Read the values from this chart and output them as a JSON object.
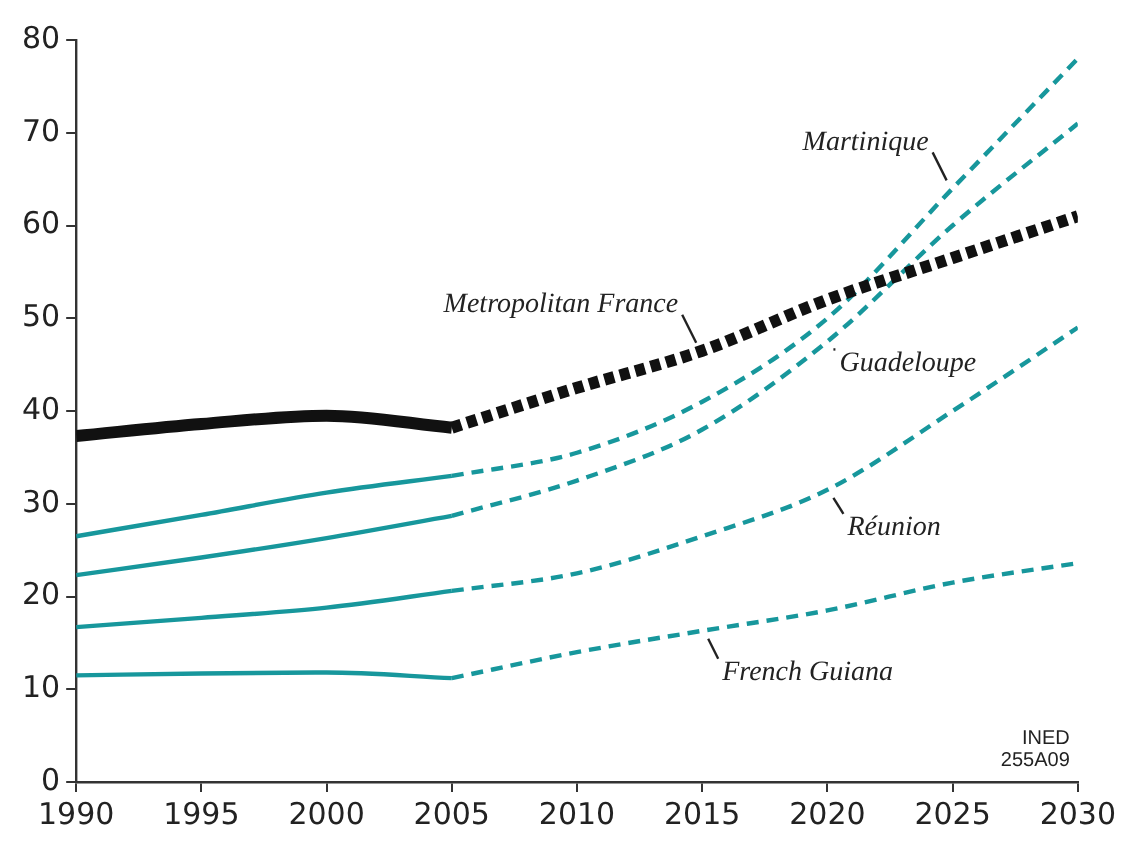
{
  "chart_data": {
    "type": "line",
    "xlim": [
      1990,
      2030
    ],
    "xticks": [
      1990,
      1995,
      2000,
      2005,
      2010,
      2015,
      2020,
      2025,
      2030
    ],
    "ylim": [
      0,
      80
    ],
    "yticks": [
      0,
      10,
      20,
      30,
      40,
      50,
      60,
      70,
      80
    ],
    "grid": false,
    "legend": false,
    "marker": "none",
    "annotations": [
      "INED\n255A09"
    ],
    "series": [
      {
        "color": "#111111",
        "line_style": "solid",
        "x": [
          1990,
          1995,
          2000,
          2005
        ],
        "values": [
          37.3,
          38.6,
          39.5,
          38.2
        ]
      },
      {
        "name": "Metropolitan France",
        "color": "#111111",
        "line_style": "dotted",
        "x": [
          2005,
          2010,
          2015,
          2020,
          2025,
          2030
        ],
        "values": [
          38.2,
          42.5,
          46.5,
          52,
          56.5,
          61
        ]
      },
      {
        "color": "#17979c",
        "line_style": "solid",
        "x": [
          1990,
          1995,
          2000,
          2005
        ],
        "values": [
          26.5,
          28.8,
          31.2,
          33
        ]
      },
      {
        "name": "Martinique",
        "color": "#17979c",
        "line_style": "dashed",
        "x": [
          2005,
          2010,
          2015,
          2020,
          2025,
          2030
        ],
        "values": [
          33,
          35.5,
          41,
          50,
          64,
          78
        ]
      },
      {
        "color": "#17979c",
        "line_style": "solid",
        "x": [
          1990,
          1995,
          2000,
          2005
        ],
        "values": [
          22.3,
          24.2,
          26.3,
          28.7
        ]
      },
      {
        "name": "Guadeloupe",
        "color": "#17979c",
        "line_style": "dashed",
        "x": [
          2005,
          2010,
          2015,
          2020,
          2025,
          2030
        ],
        "values": [
          28.7,
          32.5,
          38,
          47.5,
          60,
          71
        ]
      },
      {
        "color": "#17979c",
        "line_style": "solid",
        "x": [
          1990,
          1995,
          2000,
          2005
        ],
        "values": [
          16.7,
          17.7,
          18.8,
          20.6
        ]
      },
      {
        "name": "Réunion",
        "color": "#17979c",
        "line_style": "dashed",
        "x": [
          2005,
          2010,
          2015,
          2020,
          2025,
          2030
        ],
        "values": [
          20.6,
          22.5,
          26.5,
          31.5,
          40,
          49
        ]
      },
      {
        "color": "#17979c",
        "line_style": "solid",
        "x": [
          1990,
          1995,
          2000,
          2005
        ],
        "values": [
          11.5,
          11.7,
          11.8,
          11.2
        ]
      },
      {
        "name": "French Guiana",
        "color": "#17979c",
        "line_style": "dashed",
        "x": [
          2005,
          2010,
          2015,
          2020,
          2025,
          2030
        ],
        "values": [
          11.2,
          14,
          16.3,
          18.5,
          21.5,
          23.6
        ]
      }
    ]
  }
}
